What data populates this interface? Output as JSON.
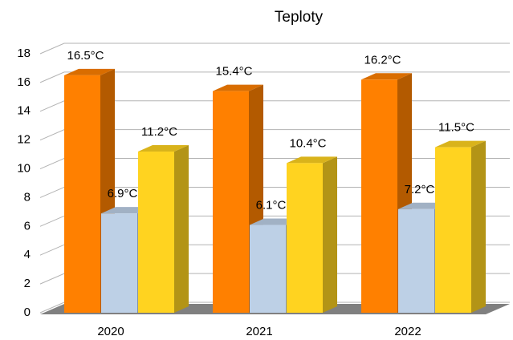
{
  "chart_data": {
    "type": "bar3d",
    "title": "Teploty",
    "categories": [
      "2020",
      "2021",
      "2022"
    ],
    "series": [
      {
        "color": "#ff8000",
        "values": [
          16.5,
          15.4,
          16.2
        ],
        "value_labels": [
          "16.5°C",
          "15.4°C",
          "16.2°C"
        ]
      },
      {
        "color": "#bdd0e6",
        "values": [
          6.9,
          6.1,
          7.2
        ],
        "value_labels": [
          "6.9°C",
          "6.1°C",
          "7.2°C"
        ]
      },
      {
        "color": "#ffd320",
        "values": [
          11.2,
          10.4,
          11.5
        ],
        "value_labels": [
          "11.2°C",
          "10.4°C",
          "11.5°C"
        ]
      }
    ],
    "ylim": [
      0,
      18
    ],
    "yticks": [
      0,
      2,
      4,
      6,
      8,
      10,
      12,
      14,
      16,
      18
    ],
    "grid": true
  }
}
